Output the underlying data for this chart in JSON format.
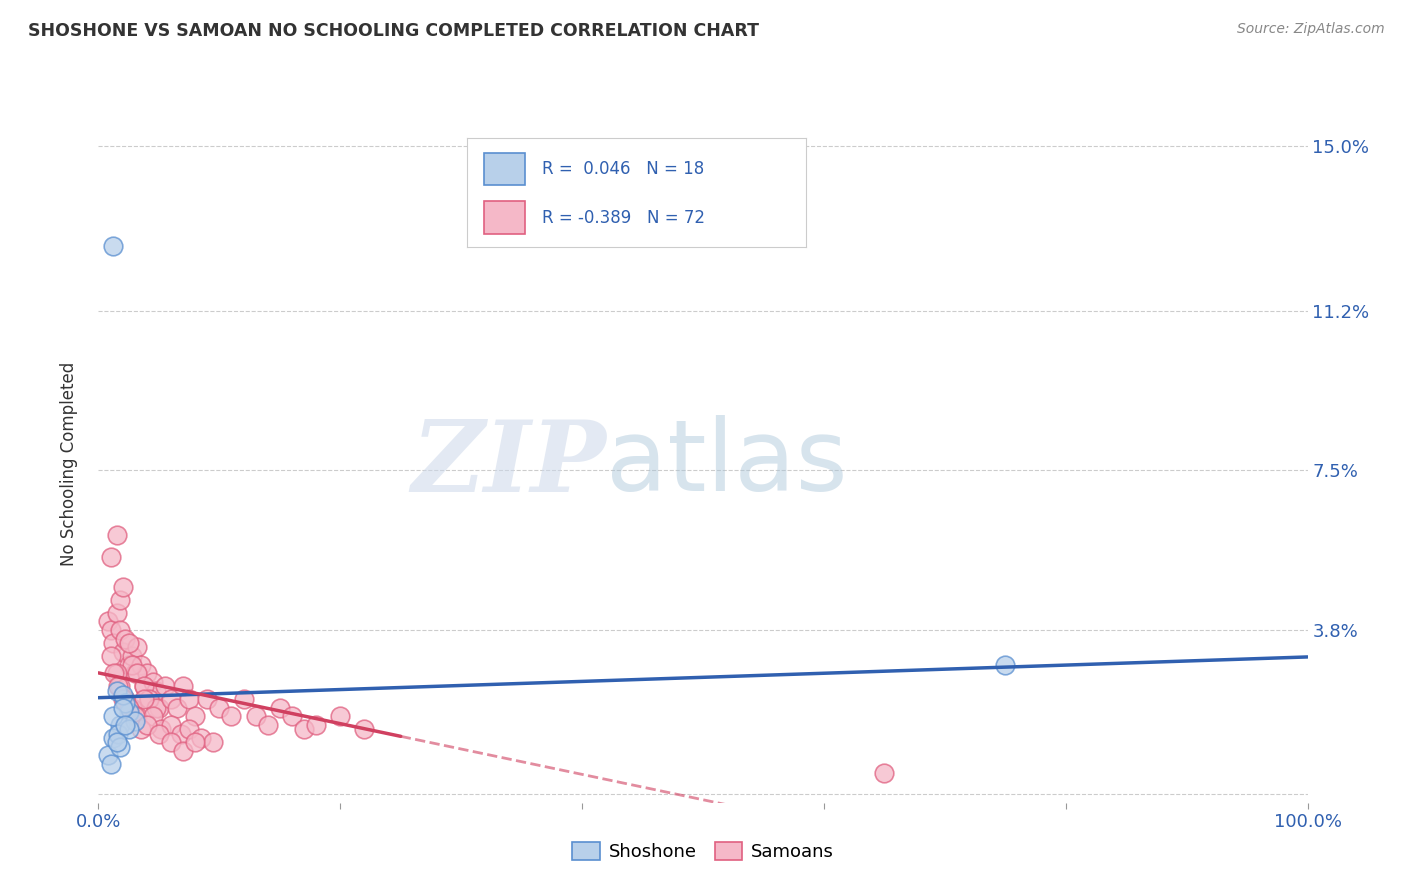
{
  "title": "SHOSHONE VS SAMOAN NO SCHOOLING COMPLETED CORRELATION CHART",
  "source": "Source: ZipAtlas.com",
  "ylabel": "No Schooling Completed",
  "xlim": [
    0.0,
    1.0
  ],
  "ylim": [
    -0.002,
    0.155
  ],
  "y_tick_positions": [
    0.0,
    0.038,
    0.075,
    0.112,
    0.15
  ],
  "y_tick_labels": [
    "",
    "3.8%",
    "7.5%",
    "11.2%",
    "15.0%"
  ],
  "x_tick_positions": [
    0.0,
    0.2,
    0.4,
    0.6,
    0.8,
    1.0
  ],
  "x_tick_labels": [
    "0.0%",
    "",
    "",
    "",
    "",
    "100.0%"
  ],
  "grid_color": "#cccccc",
  "background_color": "#ffffff",
  "shoshone_fill": "#b8d0ea",
  "shoshone_edge": "#5a8fd0",
  "samoan_fill": "#f5b8c8",
  "samoan_edge": "#e06080",
  "shoshone_line_color": "#3060b0",
  "samoan_line_color": "#d04060",
  "legend_r_shoshone": "R =  0.046",
  "legend_n_shoshone": "N = 18",
  "legend_r_samoan": "R = -0.389",
  "legend_n_samoan": "N = 72",
  "watermark_zip": "ZIP",
  "watermark_atlas": "atlas",
  "shoshone_x": [
    0.015,
    0.025,
    0.018,
    0.012,
    0.022,
    0.03,
    0.008,
    0.02,
    0.016,
    0.025,
    0.018,
    0.012,
    0.02,
    0.015,
    0.01,
    0.022,
    0.75,
    0.012
  ],
  "shoshone_y": [
    0.024,
    0.019,
    0.016,
    0.013,
    0.021,
    0.017,
    0.009,
    0.023,
    0.014,
    0.015,
    0.011,
    0.018,
    0.02,
    0.012,
    0.007,
    0.016,
    0.03,
    0.127
  ],
  "samoan_x": [
    0.008,
    0.01,
    0.012,
    0.015,
    0.018,
    0.02,
    0.022,
    0.025,
    0.028,
    0.03,
    0.032,
    0.035,
    0.038,
    0.04,
    0.042,
    0.045,
    0.048,
    0.05,
    0.01,
    0.015,
    0.018,
    0.02,
    0.025,
    0.028,
    0.032,
    0.038,
    0.042,
    0.048,
    0.055,
    0.06,
    0.065,
    0.07,
    0.075,
    0.08,
    0.09,
    0.1,
    0.11,
    0.12,
    0.13,
    0.14,
    0.15,
    0.16,
    0.17,
    0.18,
    0.2,
    0.22,
    0.015,
    0.018,
    0.022,
    0.028,
    0.032,
    0.038,
    0.045,
    0.052,
    0.06,
    0.068,
    0.075,
    0.085,
    0.095,
    0.01,
    0.013,
    0.016,
    0.02,
    0.025,
    0.03,
    0.035,
    0.04,
    0.05,
    0.06,
    0.07,
    0.08,
    0.65
  ],
  "samoan_y": [
    0.04,
    0.038,
    0.035,
    0.042,
    0.038,
    0.033,
    0.036,
    0.03,
    0.032,
    0.028,
    0.034,
    0.03,
    0.025,
    0.028,
    0.022,
    0.026,
    0.024,
    0.02,
    0.055,
    0.06,
    0.045,
    0.048,
    0.035,
    0.03,
    0.028,
    0.025,
    0.022,
    0.02,
    0.025,
    0.022,
    0.02,
    0.025,
    0.022,
    0.018,
    0.022,
    0.02,
    0.018,
    0.022,
    0.018,
    0.016,
    0.02,
    0.018,
    0.015,
    0.016,
    0.018,
    0.015,
    0.028,
    0.025,
    0.022,
    0.02,
    0.018,
    0.022,
    0.018,
    0.015,
    0.016,
    0.014,
    0.015,
    0.013,
    0.012,
    0.032,
    0.028,
    0.025,
    0.022,
    0.02,
    0.018,
    0.015,
    0.016,
    0.014,
    0.012,
    0.01,
    0.012,
    0.005
  ]
}
